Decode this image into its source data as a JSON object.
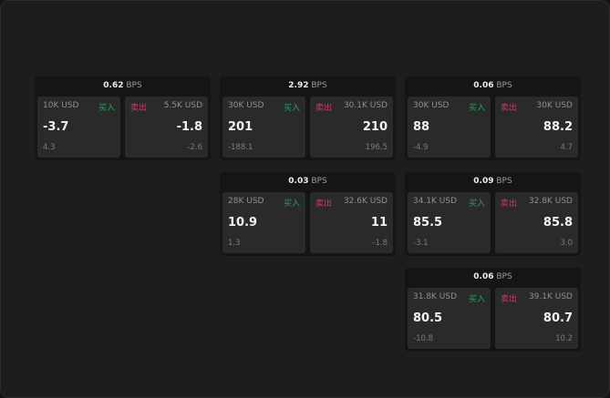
{
  "buy_label": "买入",
  "sell_label": "卖出",
  "unit": "BPS",
  "colors": {
    "buy": "#27a05a",
    "sell": "#d6336c"
  },
  "cards": [
    {
      "spread": "0.62",
      "buy": {
        "size": "10K USD",
        "price": "-3.7",
        "change": "4.3"
      },
      "sell": {
        "size": "5.5K USD",
        "price": "-1.8",
        "change": "-2.6"
      }
    },
    {
      "spread": "2.92",
      "buy": {
        "size": "30K USD",
        "price": "201",
        "change": "-188.1"
      },
      "sell": {
        "size": "30.1K USD",
        "price": "210",
        "change": "196.5"
      }
    },
    {
      "spread": "0.06",
      "buy": {
        "size": "30K USD",
        "price": "88",
        "change": "-4.9"
      },
      "sell": {
        "size": "30K USD",
        "price": "88.2",
        "change": "4.7"
      }
    },
    {
      "spread": "0.03",
      "buy": {
        "size": "28K USD",
        "price": "10.9",
        "change": "1.3"
      },
      "sell": {
        "size": "32.6K USD",
        "price": "11",
        "change": "-1.8"
      }
    },
    {
      "spread": "0.09",
      "buy": {
        "size": "34.1K USD",
        "price": "85.5",
        "change": "-3.1"
      },
      "sell": {
        "size": "32.8K USD",
        "price": "85.8",
        "change": "3.0"
      }
    },
    {
      "spread": "0.06",
      "buy": {
        "size": "31.8K USD",
        "price": "80.5",
        "change": "-10.8"
      },
      "sell": {
        "size": "39.1K USD",
        "price": "80.7",
        "change": "10.2"
      }
    }
  ]
}
